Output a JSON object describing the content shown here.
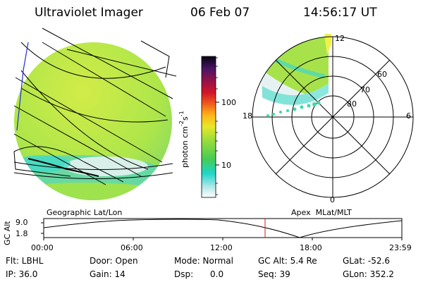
{
  "header": {
    "title": "Ultraviolet Imager",
    "date": "06 Feb 07",
    "time": "14:56:17 UT"
  },
  "colorbar": {
    "label": "photon cm",
    "label_exp1": "-2",
    "label_s": "s",
    "label_exp2": "-1",
    "ticks": [
      "100",
      "10"
    ]
  },
  "left_panel": {
    "caption": "Geographic Lat/Lon"
  },
  "polar_panel": {
    "caption": "Apex  MLat/MLT",
    "mlt_labels": {
      "top": "12",
      "left": "18",
      "right": "6",
      "bottom": "0"
    },
    "lat_labels": [
      "60",
      "70",
      "80"
    ]
  },
  "altitude_plot": {
    "ylabel": "GC Alt",
    "y_ticks": [
      "9.0",
      "1.8"
    ],
    "x_ticks": [
      "00:00",
      "06:00",
      "12:00",
      "18:00",
      "23:59"
    ],
    "cursor_time": "14:56:17"
  },
  "info": {
    "flt": "Flt: LBHL",
    "ip": "IP: 36.0",
    "door": "Door: Open",
    "gain": "Gain: 14",
    "mode": "Mode: Normal",
    "dsp_label": "Dsp:",
    "dsp_value": "0.0",
    "gc_alt": "GC Alt: 5.4 Re",
    "seq": "Seq: 39",
    "glat": "GLat: -52.6",
    "glon": "GLon: 352.2"
  },
  "colors": {
    "image_green": "#b6e84a",
    "image_cyan": "#3fd9c8",
    "image_white": "#e6f2f2",
    "cursor_red": "#d01818",
    "grid_blue": "#2030d0"
  }
}
